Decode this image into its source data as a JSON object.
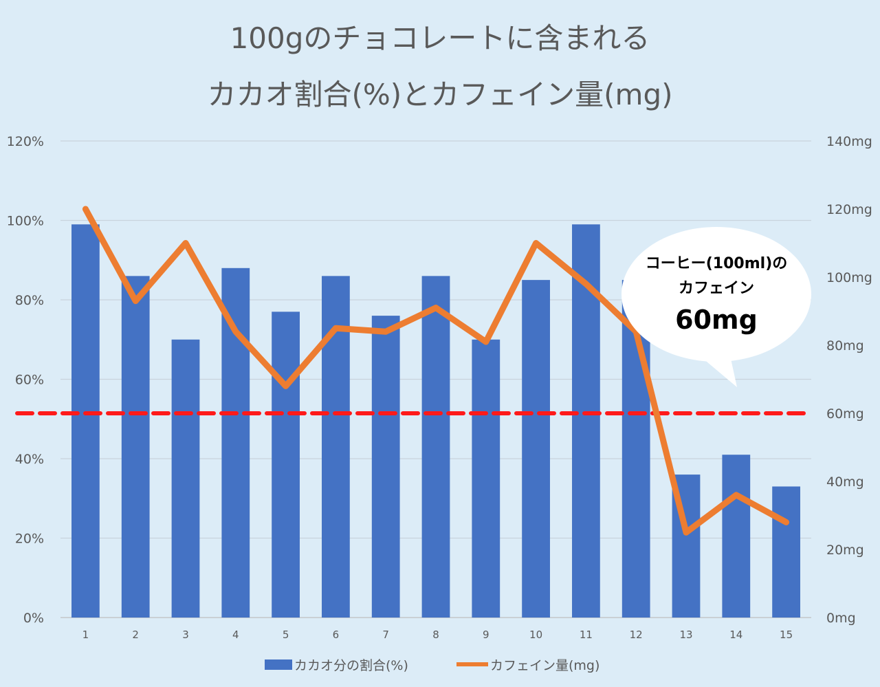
{
  "chart_data": {
    "type": "bar+line",
    "title_lines": [
      "100gのチョコレートに含まれる",
      "カカオ割合(%)とカフェイン量(mg)"
    ],
    "categories": [
      "1",
      "2",
      "3",
      "4",
      "5",
      "6",
      "7",
      "8",
      "9",
      "10",
      "11",
      "12",
      "13",
      "14",
      "15"
    ],
    "series": [
      {
        "name": "カカオ分の割合(%)",
        "type": "bar",
        "axis": "left",
        "color": "#4472c4",
        "values": [
          99,
          86,
          70,
          88,
          77,
          86,
          76,
          86,
          70,
          85,
          99,
          85,
          36,
          41,
          33
        ]
      },
      {
        "name": "カフェイン量(mg)",
        "type": "line",
        "axis": "right",
        "color": "#ed7d31",
        "values": [
          120,
          93,
          110,
          84,
          68,
          85,
          84,
          91,
          81,
          110,
          98,
          84,
          25,
          36,
          28
        ]
      }
    ],
    "y_left": {
      "min": 0,
      "max": 120,
      "step": 20,
      "tick_labels": [
        "0%",
        "20%",
        "40%",
        "60%",
        "80%",
        "100%",
        "120%"
      ]
    },
    "y_right": {
      "min": 0,
      "max": 140,
      "step": 20,
      "tick_labels": [
        "0mg",
        "20mg",
        "40mg",
        "60mg",
        "80mg",
        "100mg",
        "120mg",
        "140mg"
      ]
    },
    "reference_line": {
      "axis": "right",
      "value": 60,
      "color": "#ff1a1a",
      "style": "dashed"
    },
    "annotation": {
      "lines": [
        "コーヒー(100ml)の",
        "カフェイン"
      ],
      "value": "60mg"
    },
    "legend_position": "bottom",
    "grid": true
  }
}
